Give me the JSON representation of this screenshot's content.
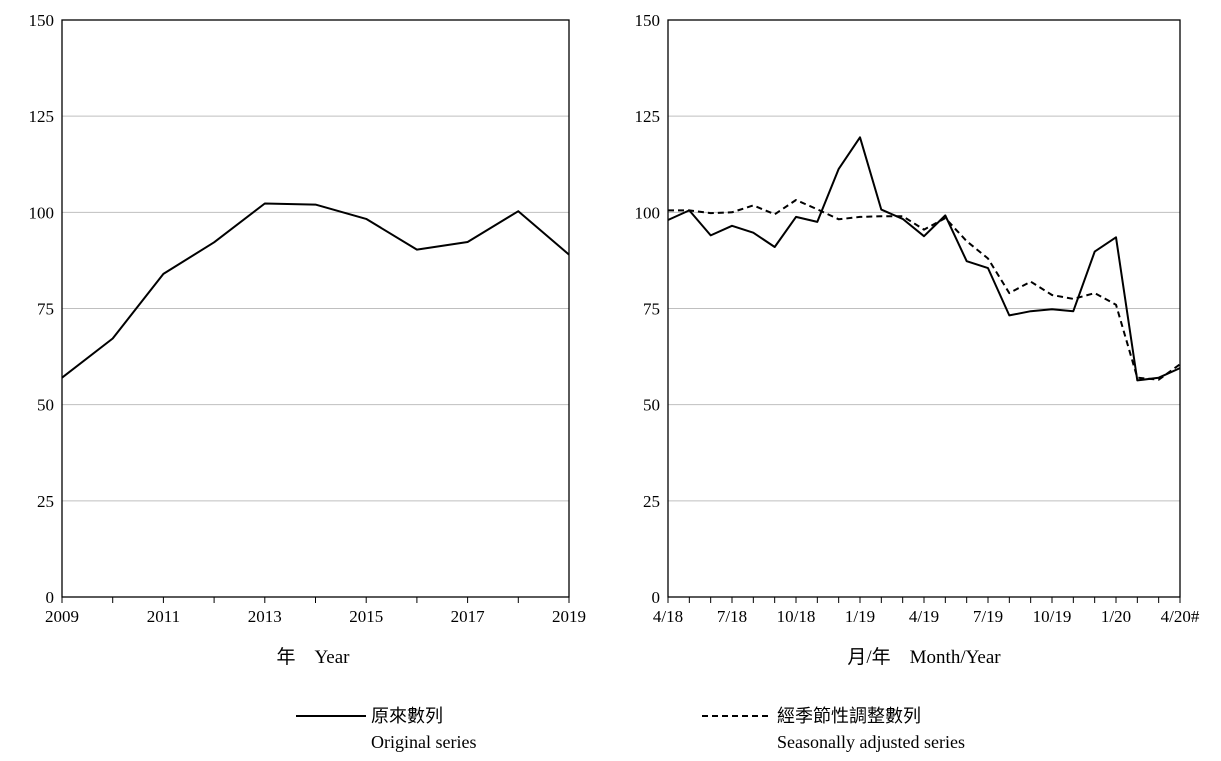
{
  "chart_data": [
    {
      "type": "line",
      "xlabel": "年　Year",
      "ylim": [
        0,
        150
      ],
      "y_ticks": [
        "0",
        "25",
        "50",
        "75",
        "100",
        "125",
        "150"
      ],
      "x_tick_labels": [
        "2009",
        "2011",
        "2013",
        "2015",
        "2017",
        "2019"
      ],
      "grid": true,
      "series": [
        {
          "name": "Original series",
          "x": [
            2009,
            2010,
            2011,
            2012,
            2013,
            2014,
            2015,
            2016,
            2017,
            2018,
            2019
          ],
          "values": [
            57,
            67.2,
            84,
            92.2,
            102.3,
            102,
            98.3,
            90.3,
            92.3,
            100.3,
            89
          ]
        }
      ]
    },
    {
      "type": "line",
      "xlabel": "月/年　Month/Year",
      "ylim": [
        0,
        150
      ],
      "y_ticks": [
        "0",
        "25",
        "50",
        "75",
        "100",
        "125",
        "150"
      ],
      "categories": [
        "4/18",
        "5/18",
        "6/18",
        "7/18",
        "8/18",
        "9/18",
        "10/18",
        "11/18",
        "12/18",
        "1/19",
        "2/19",
        "3/19",
        "4/19",
        "5/19",
        "6/19",
        "7/19",
        "8/19",
        "9/19",
        "10/19",
        "11/19",
        "12/19",
        "1/20",
        "2/20",
        "3/20",
        "4/20#"
      ],
      "x_tick_labels": [
        "4/18",
        "7/18",
        "10/18",
        "1/19",
        "4/19",
        "7/19",
        "10/19",
        "1/20",
        "4/20#"
      ],
      "grid": true,
      "series": [
        {
          "name": "Original series",
          "values": [
            98,
            100.5,
            94,
            96.5,
            94.7,
            91,
            98.8,
            97.5,
            111.3,
            119.5,
            100.7,
            98.3,
            93.8,
            99.2,
            87.3,
            85.5,
            73.2,
            74.3,
            74.8,
            74.3,
            89.8,
            93.5,
            56.3,
            57,
            59.5
          ]
        },
        {
          "name": "Seasonally adjusted series",
          "values": [
            100.5,
            100.5,
            99.8,
            100,
            101.8,
            99.5,
            103.2,
            100.8,
            98.2,
            98.8,
            99,
            99,
            95.5,
            98.5,
            92.5,
            88,
            79,
            82,
            78.5,
            77.5,
            79,
            76,
            57,
            56.5,
            60.5
          ]
        }
      ]
    }
  ],
  "legend": {
    "placement": "bottom",
    "items": [
      {
        "zh": "原來數列",
        "en": "Original series",
        "style": "solid"
      },
      {
        "zh": "經季節性調整數列",
        "en": "Seasonally adjusted series",
        "style": "dashed"
      }
    ]
  },
  "colors": {
    "line": "#000000",
    "grid": "#bfbfbf",
    "axis": "#000000"
  }
}
